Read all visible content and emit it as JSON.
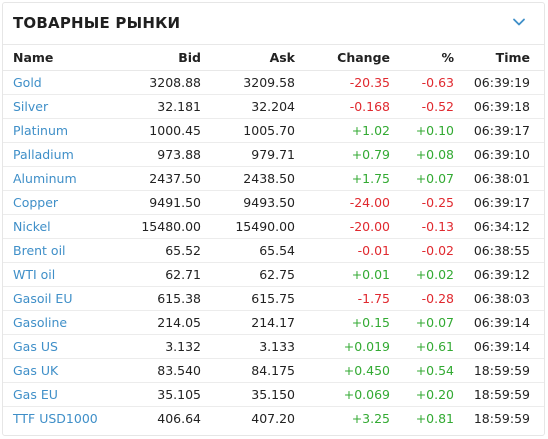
{
  "widget": {
    "title": "ТОВАРНЫЕ РЫНКИ",
    "toggle_icon": "chevron-down-icon",
    "accent_color": "#3f8fc8",
    "negative_color": "#e0292f",
    "positive_color": "#33aa33"
  },
  "table": {
    "headers": {
      "name": "Name",
      "bid": "Bid",
      "ask": "Ask",
      "change": "Change",
      "percent": "%",
      "time": "Time"
    },
    "rows": [
      {
        "name": "Gold",
        "bid": "3208.88",
        "ask": "3209.58",
        "change": "-20.35",
        "percent": "-0.63",
        "time": "06:39:19",
        "direction": "neg"
      },
      {
        "name": "Silver",
        "bid": "32.181",
        "ask": "32.204",
        "change": "-0.168",
        "percent": "-0.52",
        "time": "06:39:18",
        "direction": "neg"
      },
      {
        "name": "Platinum",
        "bid": "1000.45",
        "ask": "1005.70",
        "change": "+1.02",
        "percent": "+0.10",
        "time": "06:39:17",
        "direction": "pos"
      },
      {
        "name": "Palladium",
        "bid": "973.88",
        "ask": "979.71",
        "change": "+0.79",
        "percent": "+0.08",
        "time": "06:39:10",
        "direction": "pos"
      },
      {
        "name": "Aluminum",
        "bid": "2437.50",
        "ask": "2438.50",
        "change": "+1.75",
        "percent": "+0.07",
        "time": "06:38:01",
        "direction": "pos"
      },
      {
        "name": "Copper",
        "bid": "9491.50",
        "ask": "9493.50",
        "change": "-24.00",
        "percent": "-0.25",
        "time": "06:39:17",
        "direction": "neg"
      },
      {
        "name": "Nickel",
        "bid": "15480.00",
        "ask": "15490.00",
        "change": "-20.00",
        "percent": "-0.13",
        "time": "06:34:12",
        "direction": "neg"
      },
      {
        "name": "Brent oil",
        "bid": "65.52",
        "ask": "65.54",
        "change": "-0.01",
        "percent": "-0.02",
        "time": "06:38:55",
        "direction": "neg"
      },
      {
        "name": "WTI oil",
        "bid": "62.71",
        "ask": "62.75",
        "change": "+0.01",
        "percent": "+0.02",
        "time": "06:39:12",
        "direction": "pos"
      },
      {
        "name": "Gasoil EU",
        "bid": "615.38",
        "ask": "615.75",
        "change": "-1.75",
        "percent": "-0.28",
        "time": "06:38:03",
        "direction": "neg"
      },
      {
        "name": "Gasoline",
        "bid": "214.05",
        "ask": "214.17",
        "change": "+0.15",
        "percent": "+0.07",
        "time": "06:39:14",
        "direction": "pos"
      },
      {
        "name": "Gas US",
        "bid": "3.132",
        "ask": "3.133",
        "change": "+0.019",
        "percent": "+0.61",
        "time": "06:39:14",
        "direction": "pos"
      },
      {
        "name": "Gas UK",
        "bid": "83.540",
        "ask": "84.175",
        "change": "+0.450",
        "percent": "+0.54",
        "time": "18:59:59",
        "direction": "pos"
      },
      {
        "name": "Gas EU",
        "bid": "35.105",
        "ask": "35.150",
        "change": "+0.069",
        "percent": "+0.20",
        "time": "18:59:59",
        "direction": "pos"
      },
      {
        "name": "TTF USD1000",
        "bid": "406.64",
        "ask": "407.20",
        "change": "+3.25",
        "percent": "+0.81",
        "time": "18:59:59",
        "direction": "pos"
      }
    ]
  }
}
